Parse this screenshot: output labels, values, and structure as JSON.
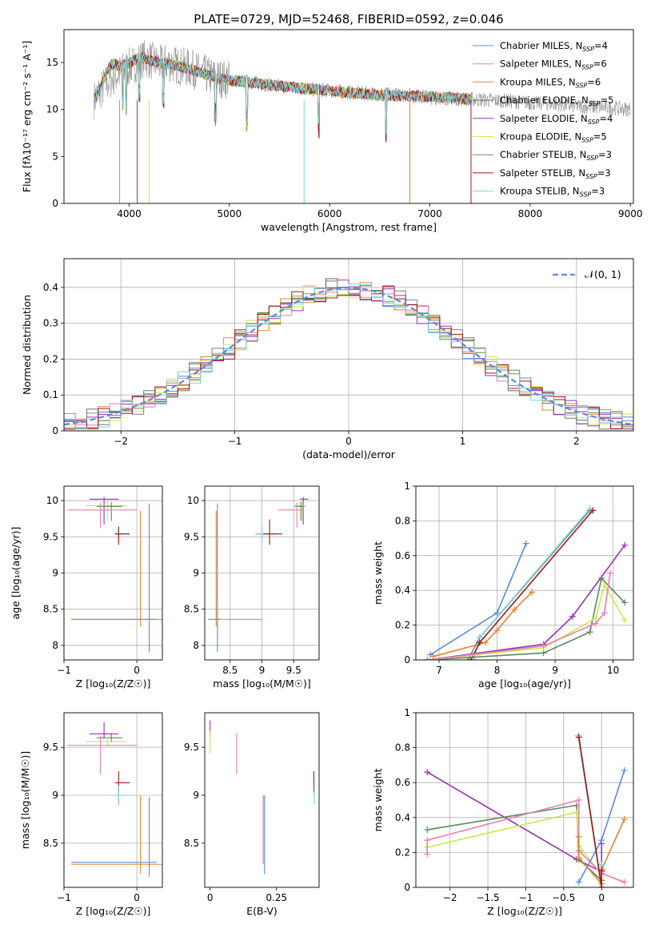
{
  "figure": {
    "title": "PLATE=0729, MJD=52468, FIBERID=0592, z=0.046"
  },
  "colors": {
    "Chabrier MILES": "#5e88d8",
    "Salpeter MILES": "#e87fb0",
    "Kroupa MILES": "#e0872c",
    "Chabrier ELODIE": "#5a8a5a",
    "Salpeter ELODIE": "#9b30b4",
    "Kroupa ELODIE": "#cce84a",
    "Chabrier STELIB": "#808080",
    "Salpeter STELIB": "#a01818",
    "Kroupa STELIB": "#76d4d8",
    "normal": "#5e88d8"
  },
  "legend_spectrum": {
    "placement": "top-right",
    "entries": [
      {
        "model": "Chabrier MILES",
        "label": "Chabrier MILES, N",
        "sub": "SSP",
        "suffix": "=4"
      },
      {
        "model": "Salpeter MILES",
        "label": "Salpeter MILES, N",
        "sub": "SSP",
        "suffix": "=6"
      },
      {
        "model": "Kroupa MILES",
        "label": "Kroupa MILES, N",
        "sub": "SSP",
        "suffix": "=6"
      },
      {
        "model": "Chabrier ELODIE",
        "label": "Chabrier ELODIE, N",
        "sub": "SSP",
        "suffix": "=5"
      },
      {
        "model": "Salpeter ELODIE",
        "label": "Salpeter ELODIE, N",
        "sub": "SSP",
        "suffix": "=4"
      },
      {
        "model": "Kroupa ELODIE",
        "label": "Kroupa ELODIE, N",
        "sub": "SSP",
        "suffix": "=5"
      },
      {
        "model": "Chabrier STELIB",
        "label": "Chabrier STELIB, N",
        "sub": "SSP",
        "suffix": "=3"
      },
      {
        "model": "Salpeter STELIB",
        "label": "Salpeter STELIB, N",
        "sub": "SSP",
        "suffix": "=3"
      },
      {
        "model": "Kroupa STELIB",
        "label": "Kroupa STELIB, N",
        "sub": "SSP",
        "suffix": "=3"
      }
    ]
  },
  "legend_residual": {
    "placement": "top-right",
    "label": "𝒩(0, 1)"
  },
  "chart_data": [
    {
      "id": "spectrum",
      "type": "line",
      "xlabel": "wavelength [Angstrom, rest frame]",
      "ylabel": "Flux [fλ10⁻¹⁷ erg cm⁻² s⁻¹ A⁻¹]",
      "xlim": [
        3350,
        9030
      ],
      "ylim": [
        0,
        18.5
      ],
      "xticks": [
        4000,
        5000,
        6000,
        7000,
        8000,
        9000
      ],
      "yticks": [
        0,
        5,
        10,
        15
      ],
      "grid": false,
      "observed": {
        "x": [
          3650,
          3700,
          3750,
          3800,
          3850,
          3900,
          3950,
          4000,
          4050,
          4100,
          4150,
          4200,
          4300,
          4400,
          4500,
          4600,
          4700,
          4800,
          4900,
          5000,
          5200,
          5400,
          5600,
          5800,
          6000,
          6200,
          6400,
          6600,
          6800,
          7000,
          7200,
          7400,
          7600,
          7800,
          8000,
          8200,
          8400,
          8600,
          8800,
          9000
        ],
        "y": [
          11.0,
          11.8,
          12.5,
          13.0,
          13.5,
          13.8,
          14.2,
          14.5,
          14.8,
          15.2,
          15.4,
          15.3,
          14.8,
          15.0,
          14.6,
          14.4,
          14.0,
          13.6,
          13.3,
          13.2,
          12.9,
          12.6,
          12.4,
          12.1,
          12.0,
          11.8,
          11.7,
          11.6,
          11.5,
          11.3,
          11.2,
          11.1,
          11.0,
          10.9,
          10.7,
          10.6,
          10.4,
          10.3,
          10.2,
          10.0
        ]
      },
      "models": {
        "x": [
          3650,
          3700,
          3750,
          3800,
          3850,
          3900,
          4000,
          4100,
          4200,
          4400,
          4600,
          4800,
          5000,
          5500,
          6000,
          6500,
          7000,
          7400
        ],
        "y": [
          11.0,
          11.9,
          13.2,
          14.5,
          14.9,
          14.6,
          14.9,
          15.6,
          15.2,
          14.8,
          14.3,
          13.6,
          13.1,
          12.5,
          12.0,
          11.5,
          11.4,
          11.1
        ]
      }
    },
    {
      "id": "residuals",
      "type": "histogram",
      "xlabel": "(data-model)/error",
      "ylabel": "Normed distribution",
      "xlim": [
        -2.5,
        2.5
      ],
      "ylim": [
        0,
        0.48
      ],
      "xticks": [
        -2,
        -1,
        0,
        1,
        2
      ],
      "yticks": [
        0.0,
        0.1,
        0.2,
        0.3,
        0.4
      ],
      "grid": true,
      "bin_width": 0.1
    },
    {
      "id": "age-vs-Z",
      "type": "errorbar",
      "xlabel": "Z [log₁₀(Z/Z☉)]",
      "ylabel": "age  [log₁₀(age/yr)]",
      "xlim": [
        -1.0,
        0.35
      ],
      "ylim": [
        7.8,
        10.2
      ],
      "xticks": [
        -1,
        0
      ],
      "yticks": [
        8.0,
        8.5,
        9.0,
        9.5,
        10.0
      ],
      "grid": true,
      "points": [
        {
          "model": "Salpeter ELODIE",
          "x": -0.45,
          "y": 10.02,
          "xlo": 0.2,
          "xhi": 0.2,
          "ylo": 0.35,
          "yhi": 0.03
        },
        {
          "model": "Kroupa ELODIE",
          "x": -0.4,
          "y": 9.93,
          "xlo": 0.3,
          "xhi": 0.25,
          "ylo": 0.2,
          "yhi": 0.06
        },
        {
          "model": "Chabrier ELODIE",
          "x": -0.35,
          "y": 9.92,
          "xlo": 0.2,
          "xhi": 0.15,
          "ylo": 0.2,
          "yhi": 0.06
        },
        {
          "model": "Salpeter MILES",
          "x": -0.5,
          "y": 9.87,
          "xlo": 0.45,
          "xhi": 0.5,
          "ylo": 0.25,
          "yhi": 0.1
        },
        {
          "model": "Chabrier STELIB",
          "x": -0.25,
          "y": 9.54,
          "xlo": 0.05,
          "xhi": 0.15,
          "ylo": 0.1,
          "yhi": 0.1
        },
        {
          "model": "Kroupa STELIB",
          "x": -0.25,
          "y": 9.54,
          "xlo": 0.05,
          "xhi": 0.15,
          "ylo": 0.1,
          "yhi": 0.1
        },
        {
          "model": "Salpeter STELIB",
          "x": -0.25,
          "y": 9.54,
          "xlo": 0.05,
          "xhi": 0.15,
          "ylo": 0.15,
          "yhi": 0.1
        },
        {
          "model": "Kroupa MILES",
          "x": 0.05,
          "y": 8.36,
          "xlo": 0.95,
          "xhi": 0.3,
          "ylo": 0.1,
          "yhi": 1.5
        },
        {
          "model": "Chabrier MILES",
          "x": 0.17,
          "y": 8.36,
          "xlo": 1.07,
          "xhi": 0.1,
          "ylo": 0.45,
          "yhi": 1.6
        }
      ]
    },
    {
      "id": "age-vs-mass",
      "type": "errorbar",
      "xlabel": "mass [log₁₀(M/M☉)]",
      "ylabel": "",
      "xlim": [
        8.1,
        9.9
      ],
      "ylim": [
        7.8,
        10.2
      ],
      "xticks": [
        8.5,
        9.0,
        9.5
      ],
      "yticks": [
        8.0,
        8.5,
        9.0,
        9.5,
        10.0
      ],
      "grid": true,
      "points": [
        {
          "model": "Salpeter ELODIE",
          "x": 9.65,
          "y": 10.02,
          "xlo": 0.05,
          "xhi": 0.08,
          "ylo": 0.35,
          "yhi": 0.03
        },
        {
          "model": "Kroupa ELODIE",
          "x": 9.6,
          "y": 9.93,
          "xlo": 0.1,
          "xhi": 0.1,
          "ylo": 0.2,
          "yhi": 0.06
        },
        {
          "model": "Chabrier ELODIE",
          "x": 9.62,
          "y": 9.92,
          "xlo": 0.1,
          "xhi": 0.05,
          "ylo": 0.2,
          "yhi": 0.06
        },
        {
          "model": "Salpeter MILES",
          "x": 9.55,
          "y": 9.87,
          "xlo": 0.3,
          "xhi": 0.1,
          "ylo": 0.25,
          "yhi": 0.1
        },
        {
          "model": "Chabrier STELIB",
          "x": 9.0,
          "y": 9.54,
          "xlo": 0.1,
          "xhi": 0.2,
          "ylo": 0.1,
          "yhi": 0.1
        },
        {
          "model": "Kroupa STELIB",
          "x": 9.0,
          "y": 9.54,
          "xlo": 0.1,
          "xhi": 0.2,
          "ylo": 0.1,
          "yhi": 0.1
        },
        {
          "model": "Salpeter STELIB",
          "x": 9.12,
          "y": 9.54,
          "xlo": 0.1,
          "xhi": 0.2,
          "ylo": 0.15,
          "yhi": 0.2
        },
        {
          "model": "Kroupa MILES",
          "x": 8.28,
          "y": 8.36,
          "xlo": 0.1,
          "xhi": 0.72,
          "ylo": 0.1,
          "yhi": 1.5
        },
        {
          "model": "Chabrier MILES",
          "x": 8.3,
          "y": 8.36,
          "xlo": 0.15,
          "xhi": 0.05,
          "ylo": 0.45,
          "yhi": 1.6
        }
      ]
    },
    {
      "id": "massweight-vs-age",
      "type": "line",
      "xlabel": "age  [log₁₀(age/yr)]",
      "ylabel": "mass weight",
      "xlim": [
        6.6,
        10.35
      ],
      "ylim": [
        0,
        1.0
      ],
      "xticks": [
        7,
        8,
        9,
        10
      ],
      "yticks": [
        0.0,
        0.2,
        0.4,
        0.6,
        0.8,
        1.0
      ],
      "grid": true,
      "series": [
        {
          "model": "Chabrier MILES",
          "x": [
            6.85,
            8.0,
            8.5
          ],
          "y": [
            0.03,
            0.27,
            0.67
          ]
        },
        {
          "model": "Kroupa MILES",
          "x": [
            6.9,
            7.8,
            8.0,
            8.3,
            8.6
          ],
          "y": [
            0.02,
            0.1,
            0.17,
            0.29,
            0.39
          ]
        },
        {
          "model": "Chabrier STELIB",
          "x": [
            7.5,
            7.7,
            9.6
          ],
          "y": [
            0.0,
            0.13,
            0.86
          ]
        },
        {
          "model": "Kroupa STELIB",
          "x": [
            7.6,
            7.7,
            9.6
          ],
          "y": [
            0.0,
            0.13,
            0.87
          ]
        },
        {
          "model": "Salpeter STELIB",
          "x": [
            7.55,
            7.7,
            9.65
          ],
          "y": [
            0.0,
            0.1,
            0.86
          ]
        },
        {
          "model": "Salpeter ELODIE",
          "x": [
            6.8,
            8.8,
            9.3,
            10.2
          ],
          "y": [
            0.0,
            0.09,
            0.25,
            0.66
          ]
        },
        {
          "model": "Chabrier ELODIE",
          "x": [
            6.8,
            8.8,
            9.6,
            9.8,
            10.2
          ],
          "y": [
            0.0,
            0.04,
            0.16,
            0.47,
            0.33
          ]
        },
        {
          "model": "Kroupa ELODIE",
          "x": [
            6.8,
            8.8,
            9.7,
            9.85,
            10.2
          ],
          "y": [
            0.0,
            0.07,
            0.24,
            0.43,
            0.23
          ]
        },
        {
          "model": "Salpeter MILES",
          "x": [
            6.8,
            8.8,
            9.7,
            9.85,
            9.95
          ],
          "y": [
            0.0,
            0.08,
            0.21,
            0.27,
            0.5
          ]
        }
      ]
    },
    {
      "id": "mass-vs-Z",
      "type": "errorbar",
      "xlabel": "Z [log₁₀(Z/Z☉)]",
      "ylabel": "mass [log₁₀(M/M☉)]",
      "xlim": [
        -1.0,
        0.35
      ],
      "ylim": [
        8.04,
        9.86
      ],
      "xticks": [
        -1,
        0
      ],
      "yticks": [
        8.5,
        9.0,
        9.5
      ],
      "grid": true,
      "points": [
        {
          "model": "Salpeter ELODIE",
          "x": -0.45,
          "y": 9.64,
          "xlo": 0.2,
          "xhi": 0.2,
          "ylo": 0.05,
          "yhi": 0.12
        },
        {
          "model": "Chabrier ELODIE",
          "x": -0.35,
          "y": 9.6,
          "xlo": 0.2,
          "xhi": 0.15,
          "ylo": 0.05,
          "yhi": 0.05
        },
        {
          "model": "Kroupa ELODIE",
          "x": -0.4,
          "y": 9.56,
          "xlo": 0.3,
          "xhi": 0.25,
          "ylo": 0.05,
          "yhi": 0.05
        },
        {
          "model": "Salpeter MILES",
          "x": -0.5,
          "y": 9.52,
          "xlo": 0.45,
          "xhi": 0.5,
          "ylo": 0.3,
          "yhi": 0.1
        },
        {
          "model": "Salpeter STELIB",
          "x": -0.25,
          "y": 9.13,
          "xlo": 0.05,
          "xhi": 0.15,
          "ylo": 0.1,
          "yhi": 0.12
        },
        {
          "model": "Chabrier STELIB",
          "x": -0.25,
          "y": 9.0,
          "xlo": 0.05,
          "xhi": 0.15,
          "ylo": 0.1,
          "yhi": 0.1
        },
        {
          "model": "Kroupa STELIB",
          "x": -0.25,
          "y": 9.0,
          "xlo": 0.05,
          "xhi": 0.15,
          "ylo": 0.1,
          "yhi": 0.1
        },
        {
          "model": "Chabrier MILES",
          "x": 0.17,
          "y": 8.3,
          "xlo": 1.07,
          "xhi": 0.1,
          "ylo": 0.15,
          "yhi": 0.68
        },
        {
          "model": "Kroupa MILES",
          "x": 0.05,
          "y": 8.28,
          "xlo": 0.95,
          "xhi": 0.3,
          "ylo": 0.1,
          "yhi": 0.72
        }
      ]
    },
    {
      "id": "mass-vs-ebv",
      "type": "errorbar",
      "xlabel": "E(B-V)",
      "ylabel": "",
      "xlim": [
        -0.02,
        0.41
      ],
      "ylim": [
        8.04,
        9.86
      ],
      "xticks": [
        0.0,
        0.25
      ],
      "yticks": [
        8.5,
        9.0,
        9.5
      ],
      "grid": false,
      "points": [
        {
          "model": "Salpeter ELODIE",
          "x": 0.0,
          "y": 9.7,
          "xlo": 0.0,
          "xhi": 0.0,
          "ylo": 0.1,
          "yhi": 0.08
        },
        {
          "model": "Kroupa ELODIE",
          "x": 0.0,
          "y": 9.55,
          "xlo": 0.0,
          "xhi": 0.0,
          "ylo": 0.12,
          "yhi": 0.12
        },
        {
          "model": "Salpeter MILES",
          "x": 0.1,
          "y": 9.45,
          "xlo": 0.0,
          "xhi": 0.0,
          "ylo": 0.23,
          "yhi": 0.2
        },
        {
          "model": "Salpeter STELIB",
          "x": 0.39,
          "y": 9.13,
          "xlo": 0.0,
          "xhi": 0.0,
          "ylo": 0.1,
          "yhi": 0.12
        },
        {
          "model": "Kroupa STELIB",
          "x": 0.392,
          "y": 9.0,
          "xlo": 0.0,
          "xhi": 0.0,
          "ylo": 0.1,
          "yhi": 0.1
        },
        {
          "model": "Kroupa MILES",
          "x": 0.2,
          "y": 8.5,
          "xlo": 0.0,
          "xhi": 0.0,
          "ylo": 0.22,
          "yhi": 0.5
        },
        {
          "model": "Chabrier MILES",
          "x": 0.205,
          "y": 8.5,
          "xlo": 0.0,
          "xhi": 0.0,
          "ylo": 0.32,
          "yhi": 0.5
        }
      ]
    },
    {
      "id": "massweight-vs-Z",
      "type": "line",
      "xlabel": "Z [log₁₀(Z/Z☉)]",
      "ylabel": "mass weight",
      "xlim": [
        -2.45,
        0.42
      ],
      "ylim": [
        0,
        1.0
      ],
      "xticks": [
        -2.0,
        -1.5,
        -1.0,
        -0.5,
        0.0
      ],
      "yticks": [
        0.0,
        0.2,
        0.4,
        0.6,
        0.8,
        1.0
      ],
      "grid": true,
      "series": [
        {
          "model": "Salpeter ELODIE",
          "x": [
            -2.3,
            -0.33,
            0.0,
            0.0
          ],
          "y": [
            0.66,
            0.16,
            0.09,
            0.25
          ]
        },
        {
          "model": "Chabrier ELODIE",
          "x": [
            -2.3,
            -0.33,
            -0.3,
            0.0
          ],
          "y": [
            0.33,
            0.47,
            0.16,
            0.04
          ]
        },
        {
          "model": "Kroupa ELODIE",
          "x": [
            -2.3,
            -0.33,
            -0.3,
            0.0
          ],
          "y": [
            0.23,
            0.43,
            0.24,
            0.07
          ]
        },
        {
          "model": "Salpeter MILES",
          "x": [
            -2.3,
            -2.3,
            -0.3,
            -0.3,
            0.0,
            0.3
          ],
          "y": [
            0.19,
            0.27,
            0.5,
            0.21,
            0.08,
            0.03
          ]
        },
        {
          "model": "Chabrier MILES",
          "x": [
            -0.3,
            0.0,
            0.3
          ],
          "y": [
            0.03,
            0.27,
            0.67
          ]
        },
        {
          "model": "Kroupa MILES",
          "x": [
            -0.3,
            -0.3,
            0.0,
            0.0,
            0.3
          ],
          "y": [
            0.29,
            0.17,
            0.02,
            0.1,
            0.39
          ]
        },
        {
          "model": "Chabrier STELIB",
          "x": [
            -0.3,
            0.0,
            0.0
          ],
          "y": [
            0.86,
            0.0,
            0.13
          ]
        },
        {
          "model": "Kroupa STELIB",
          "x": [
            -0.31,
            0.0,
            0.0
          ],
          "y": [
            0.87,
            0.0,
            0.13
          ]
        },
        {
          "model": "Salpeter STELIB",
          "x": [
            -0.3,
            0.0,
            0.0
          ],
          "y": [
            0.86,
            0.0,
            0.1
          ]
        }
      ]
    }
  ]
}
